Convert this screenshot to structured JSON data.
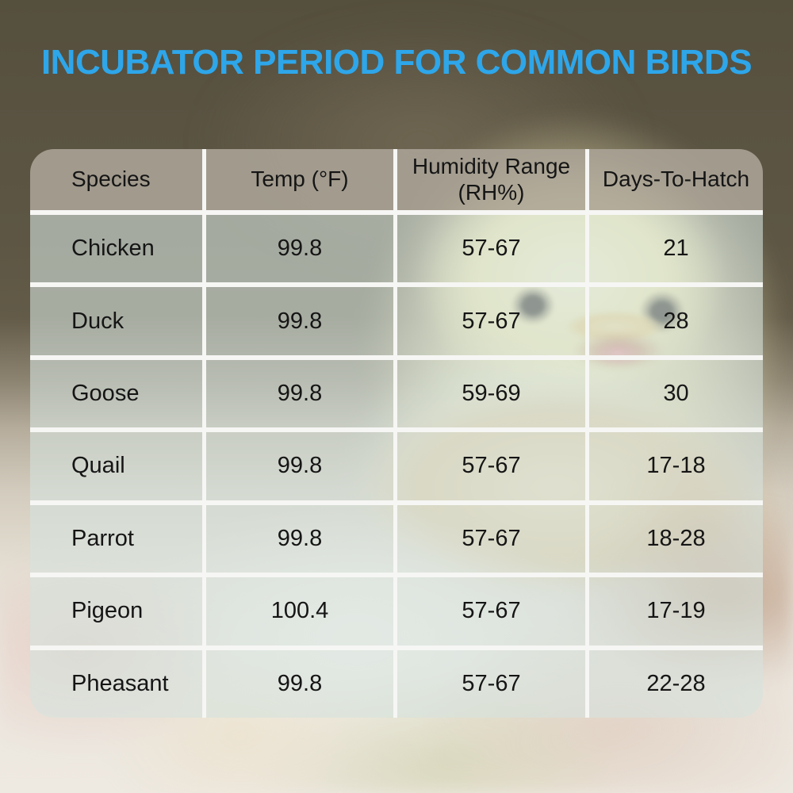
{
  "title": "INCUBATOR PERIOD FOR COMMON BIRDS",
  "colors": {
    "title_blue": "#2ea6ea",
    "grid_line_white": "#f6f6f4",
    "header_fill_gray": "#aba497",
    "row_overlay_tint": "#d5e2dd",
    "background_top_olive": "#59523f",
    "chick_yellow": "#f0e9ae",
    "eggshell_cream": "#e7d6b2"
  },
  "chart_data": {
    "type": "table",
    "title": "INCUBATOR PERIOD FOR COMMON BIRDS",
    "columns": [
      "Species",
      "Temp (°F)",
      "Humidity Range (RH%)",
      "Days-To-Hatch"
    ],
    "rows": [
      [
        "Chicken",
        "99.8",
        "57-67",
        "21"
      ],
      [
        "Duck",
        "99.8",
        "57-67",
        "28"
      ],
      [
        "Goose",
        "99.8",
        "59-69",
        "30"
      ],
      [
        "Quail",
        "99.8",
        "57-67",
        "17-18"
      ],
      [
        "Parrot",
        "99.8",
        "57-67",
        "18-28"
      ],
      [
        "Pigeon",
        "100.4",
        "57-67",
        "17-19"
      ],
      [
        "Pheasant",
        "99.8",
        "57-67",
        "22-28"
      ]
    ]
  }
}
